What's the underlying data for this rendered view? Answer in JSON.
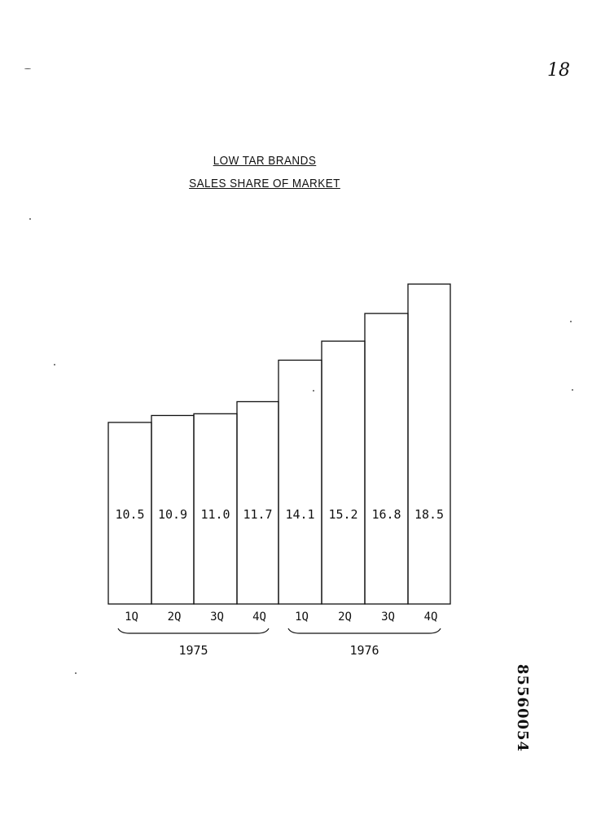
{
  "page": {
    "page_number": "18",
    "document_id": "85560054"
  },
  "chart_data": {
    "type": "bar",
    "title": "LOW TAR BRANDS",
    "subtitle": "SALES SHARE OF MARKET",
    "categories": [
      "1Q",
      "2Q",
      "3Q",
      "4Q",
      "1Q",
      "2Q",
      "3Q",
      "4Q"
    ],
    "values": [
      10.5,
      10.9,
      11.0,
      11.7,
      14.1,
      15.2,
      16.8,
      18.5
    ],
    "value_labels": [
      "10.5",
      "10.9",
      "11.0",
      "11.7",
      "14.1",
      "15.2",
      "16.8",
      "18.5"
    ],
    "groups": [
      {
        "label": "1975",
        "from": 0,
        "to": 3
      },
      {
        "label": "1976",
        "from": 4,
        "to": 7
      }
    ],
    "xlabel": "",
    "ylabel": "",
    "ylim": [
      0,
      18.5
    ],
    "grid": false,
    "legend": "none",
    "colors": {
      "ink": "#111111",
      "paper": "#ffffff"
    }
  }
}
